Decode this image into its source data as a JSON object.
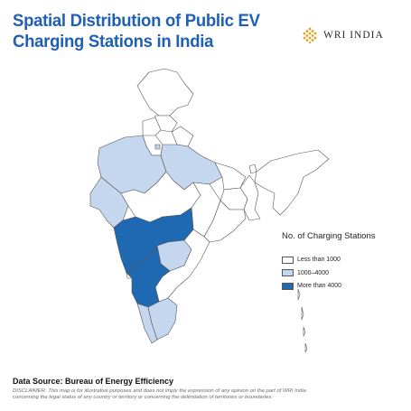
{
  "header": {
    "title_line1": "Spatial Distribution of Public EV",
    "title_line2": "Charging Stations in India",
    "logo_text": "WRI INDIA",
    "logo_color": "#d9a21b"
  },
  "legend": {
    "title": "No. of Charging Stations",
    "items": [
      {
        "label": "Less than 1000",
        "color": "#ffffff"
      },
      {
        "label": "1000–4000",
        "color": "#c5d7ee"
      },
      {
        "label": "More than 4000",
        "color": "#1f69b3"
      }
    ]
  },
  "footer": {
    "source": "Data Source: Bureau of Energy Efficiency",
    "disclaimer_line1": "DISCLAIMER: This map is for illustrative purposes and does not imply the expression of any opinion on the part of WRI India",
    "disclaimer_line2": "concerning the legal status of any country or territory or concerning the delimitation of territories or boundaries."
  },
  "map": {
    "region_classes": {
      "high": [
        "Maharashtra",
        "Karnataka"
      ],
      "medium": [
        "Gujarat",
        "Rajasthan",
        "Uttar Pradesh",
        "Delhi",
        "Telangana",
        "Kerala",
        "Tamil Nadu"
      ]
    }
  }
}
